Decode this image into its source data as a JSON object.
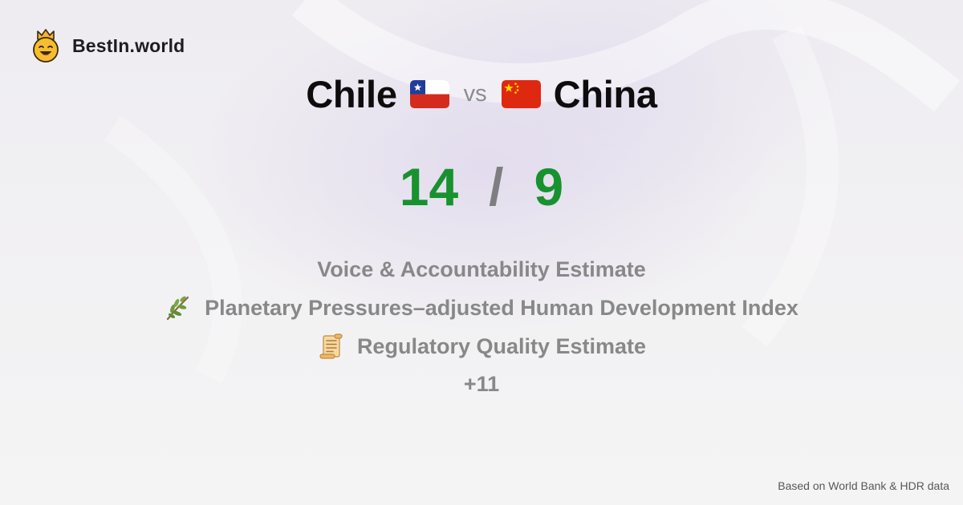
{
  "brand": {
    "name": "BestIn.world",
    "logo_icon": "crown-smiley-icon"
  },
  "comparison": {
    "left_country": "Chile",
    "left_flag": "chile-flag-icon",
    "vs_label": "vs",
    "right_country": "China",
    "right_flag": "china-flag-icon"
  },
  "score": {
    "left": "14",
    "separator": "/",
    "right": "9",
    "color": "#17922f"
  },
  "metrics": [
    {
      "label": "Voice & Accountability Estimate",
      "icon": ""
    },
    {
      "label": "Planetary Pressures–adjusted Human Development Index",
      "icon": "olive-branch-icon"
    },
    {
      "label": "Regulatory Quality Estimate",
      "icon": "scroll-icon"
    }
  ],
  "more_label": "+11",
  "footer": {
    "source": "Based on World Bank & HDR data"
  }
}
